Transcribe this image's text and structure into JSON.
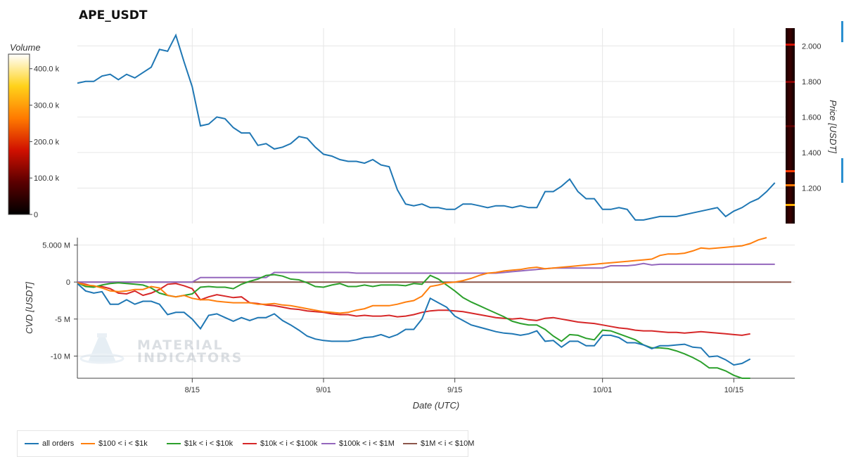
{
  "title": "APE_USDT",
  "colorbar": {
    "title": "Volume",
    "ticks": [
      "400.0 k",
      "300.0 k",
      "200.0 k",
      "100.0 k",
      "0"
    ],
    "tick_values": [
      400000,
      300000,
      200000,
      100000,
      0
    ],
    "max": 440000
  },
  "chart_data": [
    {
      "type": "line",
      "title": "APE_USDT",
      "ylabel": "Price [USDT]",
      "ylim": [
        1.0,
        2.1
      ],
      "yticks": [
        1.2,
        1.4,
        1.6,
        1.8,
        2.0
      ],
      "ytick_labels": [
        "1.200",
        "1.400",
        "1.600",
        "1.800",
        "2.000"
      ],
      "xlim": [
        0,
        87
      ],
      "grid": true,
      "series": [
        {
          "name": "Price",
          "color": "#1f77b4",
          "values": [
            1.79,
            1.8,
            1.8,
            1.83,
            1.84,
            1.81,
            1.84,
            1.82,
            1.85,
            1.88,
            1.98,
            1.97,
            2.06,
            1.91,
            1.77,
            1.55,
            1.56,
            1.6,
            1.59,
            1.54,
            1.51,
            1.51,
            1.44,
            1.45,
            1.42,
            1.43,
            1.45,
            1.49,
            1.48,
            1.43,
            1.39,
            1.38,
            1.36,
            1.35,
            1.35,
            1.34,
            1.36,
            1.33,
            1.32,
            1.19,
            1.11,
            1.1,
            1.11,
            1.09,
            1.09,
            1.08,
            1.08,
            1.11,
            1.11,
            1.1,
            1.09,
            1.1,
            1.1,
            1.09,
            1.1,
            1.09,
            1.09,
            1.18,
            1.18,
            1.21,
            1.25,
            1.18,
            1.14,
            1.14,
            1.08,
            1.08,
            1.09,
            1.08,
            1.02,
            1.02,
            1.03,
            1.04,
            1.04,
            1.04,
            1.05,
            1.06,
            1.07,
            1.08,
            1.09,
            1.04,
            1.07,
            1.09,
            1.12,
            1.14,
            1.18,
            1.23
          ]
        }
      ]
    },
    {
      "type": "line",
      "xlabel": "Date (UTC)",
      "ylabel": "CVD [USDT]",
      "ylim": [
        -13,
        6
      ],
      "yticks": [
        5,
        0,
        -5,
        -10
      ],
      "ytick_labels": [
        "5.000 M",
        "0",
        "-5 M",
        "-10 M"
      ],
      "xticks": [
        14,
        30,
        46,
        64,
        80
      ],
      "xtick_labels": [
        "8/15",
        "9/01",
        "9/15",
        "10/01",
        "10/15"
      ],
      "xlim": [
        0,
        87
      ],
      "grid": true,
      "series": [
        {
          "name": "all orders",
          "color": "#1f77b4",
          "values": [
            -0.2,
            -1.2,
            -1.5,
            -1.3,
            -3.0,
            -3.0,
            -2.4,
            -3.0,
            -2.6,
            -2.6,
            -3.0,
            -4.4,
            -4.1,
            -4.1,
            -5.0,
            -6.3,
            -4.5,
            -4.3,
            -4.8,
            -5.3,
            -4.8,
            -5.2,
            -4.8,
            -4.8,
            -4.3,
            -5.2,
            -5.8,
            -6.5,
            -7.3,
            -7.7,
            -7.9,
            -8.0,
            -8.0,
            -8.0,
            -7.8,
            -7.5,
            -7.4,
            -7.1,
            -7.5,
            -7.1,
            -6.4,
            -6.4,
            -5.0,
            -2.2,
            -2.8,
            -3.4,
            -4.6,
            -5.2,
            -5.8,
            -6.1,
            -6.4,
            -6.7,
            -6.9,
            -7.0,
            -7.2,
            -7.0,
            -6.6,
            -8.0,
            -7.9,
            -8.8,
            -8.0,
            -8.0,
            -8.6,
            -8.6,
            -7.2,
            -7.2,
            -7.5,
            -8.2,
            -8.2,
            -8.5,
            -9.0,
            -8.6,
            -8.6,
            -8.5,
            -8.4,
            -8.8,
            -8.9,
            -10.1,
            -10.0,
            -10.5,
            -11.2,
            -11.0,
            -10.4
          ]
        },
        {
          "name": "$100 < i < $1k",
          "color": "#ff7f0e",
          "values": [
            -0.1,
            -0.4,
            -0.5,
            -0.8,
            -1.2,
            -1.3,
            -1.2,
            -1.0,
            -1.0,
            -0.6,
            -0.8,
            -1.8,
            -2.0,
            -1.8,
            -2.2,
            -2.4,
            -2.4,
            -2.6,
            -2.7,
            -2.8,
            -2.8,
            -2.8,
            -3.0,
            -3.0,
            -2.9,
            -3.1,
            -3.2,
            -3.4,
            -3.6,
            -3.8,
            -4.0,
            -4.1,
            -4.2,
            -4.1,
            -3.8,
            -3.6,
            -3.2,
            -3.2,
            -3.2,
            -3.0,
            -2.7,
            -2.5,
            -1.9,
            -0.6,
            -0.4,
            -0.1,
            0.0,
            0.2,
            0.5,
            0.9,
            1.2,
            1.3,
            1.5,
            1.6,
            1.7,
            1.9,
            2.0,
            1.8,
            1.9,
            2.0,
            2.1,
            2.2,
            2.3,
            2.4,
            2.5,
            2.6,
            2.7,
            2.8,
            2.9,
            3.0,
            3.1,
            3.6,
            3.8,
            3.8,
            3.9,
            4.2,
            4.6,
            4.5,
            4.6,
            4.7,
            4.8,
            4.9,
            5.2,
            5.7,
            6.0
          ]
        },
        {
          "name": "$1k < i < $10k",
          "color": "#2ca02c",
          "values": [
            -0.1,
            -0.6,
            -0.7,
            -0.4,
            -0.2,
            -0.1,
            -0.2,
            -0.3,
            -0.4,
            -0.8,
            -1.5,
            -1.8,
            -2.0,
            -1.8,
            -1.6,
            -0.7,
            -0.6,
            -0.7,
            -0.7,
            -0.9,
            -0.3,
            0.1,
            0.4,
            0.9,
            1.0,
            0.8,
            0.4,
            0.3,
            -0.1,
            -0.6,
            -0.7,
            -0.4,
            -0.2,
            -0.6,
            -0.6,
            -0.4,
            -0.6,
            -0.4,
            -0.4,
            -0.4,
            -0.5,
            -0.2,
            -0.3,
            0.9,
            0.4,
            -0.4,
            -1.2,
            -2.1,
            -2.7,
            -3.2,
            -3.7,
            -4.2,
            -4.7,
            -5.3,
            -5.6,
            -5.8,
            -5.8,
            -6.4,
            -7.3,
            -8.0,
            -7.1,
            -7.2,
            -7.6,
            -7.8,
            -6.5,
            -6.6,
            -7.0,
            -7.4,
            -7.8,
            -8.5,
            -8.9,
            -8.9,
            -9.0,
            -9.3,
            -9.7,
            -10.2,
            -10.8,
            -11.6,
            -11.6,
            -12.0,
            -12.6,
            -13.0,
            -13.3
          ]
        },
        {
          "name": "$10k < i < $100k",
          "color": "#d62728",
          "values": [
            -0.1,
            -0.3,
            -0.6,
            -0.6,
            -0.9,
            -1.5,
            -1.6,
            -1.2,
            -1.8,
            -1.5,
            -1.0,
            -0.3,
            -0.2,
            -0.5,
            -0.9,
            -2.4,
            -2.0,
            -1.7,
            -1.9,
            -2.1,
            -2.0,
            -2.8,
            -2.9,
            -3.1,
            -3.2,
            -3.4,
            -3.6,
            -3.7,
            -3.9,
            -4.0,
            -4.1,
            -4.3,
            -4.4,
            -4.4,
            -4.6,
            -4.5,
            -4.6,
            -4.6,
            -4.5,
            -4.7,
            -4.6,
            -4.4,
            -4.1,
            -3.9,
            -3.8,
            -3.8,
            -3.9,
            -4.0,
            -4.2,
            -4.4,
            -4.6,
            -4.8,
            -4.9,
            -5.0,
            -4.9,
            -5.1,
            -5.2,
            -4.9,
            -4.8,
            -5.0,
            -5.2,
            -5.4,
            -5.5,
            -5.6,
            -5.8,
            -6.0,
            -6.2,
            -6.3,
            -6.5,
            -6.6,
            -6.6,
            -6.7,
            -6.8,
            -6.8,
            -6.9,
            -6.8,
            -6.7,
            -6.8,
            -6.9,
            -7.0,
            -7.1,
            -7.2,
            -7.0
          ]
        },
        {
          "name": "$100k < i < $1M",
          "color": "#9467bd",
          "values": [
            0.0,
            0.0,
            0.0,
            0.0,
            0.0,
            0.0,
            0.0,
            0.0,
            0.0,
            0.0,
            0.0,
            0.0,
            0.0,
            0.0,
            0.0,
            0.6,
            0.6,
            0.6,
            0.6,
            0.6,
            0.6,
            0.6,
            0.6,
            0.6,
            1.3,
            1.3,
            1.3,
            1.3,
            1.3,
            1.3,
            1.3,
            1.3,
            1.3,
            1.3,
            1.2,
            1.2,
            1.2,
            1.2,
            1.2,
            1.2,
            1.2,
            1.2,
            1.2,
            1.2,
            1.2,
            1.2,
            1.2,
            1.2,
            1.2,
            1.2,
            1.2,
            1.2,
            1.3,
            1.4,
            1.5,
            1.6,
            1.7,
            1.8,
            1.9,
            1.9,
            1.9,
            1.9,
            1.9,
            1.9,
            1.9,
            2.2,
            2.2,
            2.2,
            2.3,
            2.5,
            2.3,
            2.4,
            2.4,
            2.4,
            2.4,
            2.4,
            2.4,
            2.4,
            2.4,
            2.4,
            2.4,
            2.4,
            2.4,
            2.4,
            2.4,
            2.4
          ]
        },
        {
          "name": "$1M < i < $10M",
          "color": "#8c564b",
          "values": [
            0,
            0,
            0,
            0,
            0,
            0,
            0,
            0,
            0,
            0,
            0,
            0,
            0,
            0,
            0,
            0,
            0,
            0,
            0,
            0,
            0,
            0,
            0,
            0,
            0,
            0,
            0,
            0,
            0,
            0,
            0,
            0,
            0,
            0,
            0,
            0,
            0,
            0,
            0,
            0,
            0,
            0,
            0,
            0,
            0,
            0,
            0,
            0,
            0,
            0,
            0,
            0,
            0,
            0,
            0,
            0,
            0,
            0,
            0,
            0,
            0,
            0,
            0,
            0,
            0,
            0,
            0,
            0,
            0,
            0,
            0,
            0,
            0,
            0,
            0,
            0,
            0,
            0,
            0,
            0,
            0,
            0,
            0,
            0,
            0,
            0,
            0,
            0
          ]
        }
      ]
    }
  ],
  "watermark": {
    "line1": "MATERIAL",
    "line2": "INDICATORS"
  }
}
